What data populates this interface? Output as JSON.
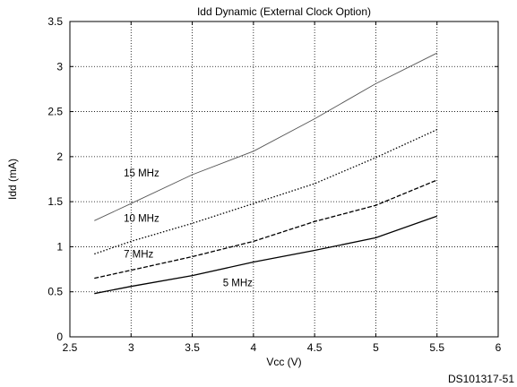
{
  "chart_data": {
    "type": "line",
    "title": "Idd Dynamic (External Clock Option)",
    "xlabel": "Vcc (V)",
    "ylabel": "Idd (mA)",
    "xlim": [
      2.5,
      6
    ],
    "ylim": [
      0,
      3.5
    ],
    "x_ticks": [
      "2.5",
      "3",
      "3.5",
      "4",
      "4.5",
      "5",
      "5.5",
      "6"
    ],
    "y_ticks": [
      "0",
      "0.5",
      "1",
      "1.5",
      "2",
      "2.5",
      "3",
      "3.5"
    ],
    "grid": true,
    "x": [
      2.7,
      3.0,
      3.5,
      4.0,
      4.5,
      5.0,
      5.5
    ],
    "series": [
      {
        "name": "15 MHz",
        "values": [
          1.29,
          1.48,
          1.8,
          2.06,
          2.42,
          2.81,
          3.15
        ],
        "color": "#555555",
        "dash": "solid"
      },
      {
        "name": "10 MHz",
        "values": [
          0.92,
          1.06,
          1.26,
          1.48,
          1.7,
          1.99,
          2.3
        ],
        "color": "#000000",
        "dash": "dotted"
      },
      {
        "name": "7 MHz",
        "values": [
          0.65,
          0.74,
          0.89,
          1.06,
          1.28,
          1.46,
          1.74
        ],
        "color": "#000000",
        "dash": "dashed"
      },
      {
        "name": "5 MHz",
        "values": [
          0.48,
          0.56,
          0.68,
          0.83,
          0.96,
          1.1,
          1.34
        ],
        "color": "#000000",
        "dash": "solid"
      }
    ],
    "series_labels": [
      {
        "text": "15 MHz",
        "x": 2.94,
        "y": 1.78
      },
      {
        "text": "10 MHz",
        "x": 2.94,
        "y": 1.28
      },
      {
        "text": "7 MHz",
        "x": 2.94,
        "y": 0.88
      },
      {
        "text": "5 MHz",
        "x": 3.75,
        "y": 0.56
      }
    ]
  },
  "footer": {
    "document_id": "DS101317-51"
  }
}
